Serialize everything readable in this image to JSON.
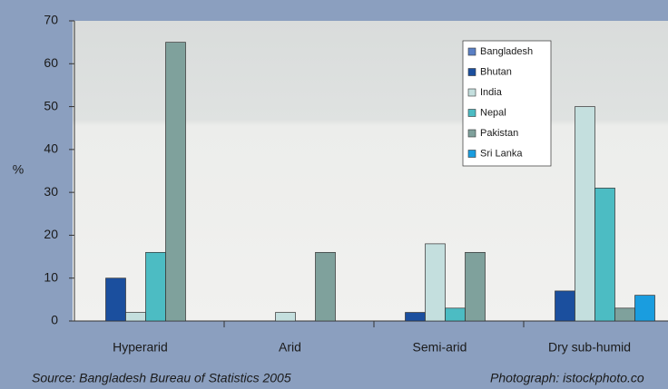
{
  "chart_data": {
    "type": "bar",
    "ylabel": "%",
    "categories": [
      "Hyperarid",
      "Arid",
      "Semi-arid",
      "Dry sub-humid"
    ],
    "series": [
      {
        "name": "Bangladesh",
        "color": "#5a7fc4",
        "values": [
          0,
          0,
          0,
          0
        ]
      },
      {
        "name": "Bhutan",
        "color": "#1b4f9e",
        "values": [
          10,
          0,
          2,
          7
        ]
      },
      {
        "name": "India",
        "color": "#c4dfde",
        "values": [
          2,
          2,
          18,
          50
        ]
      },
      {
        "name": "Nepal",
        "color": "#4cbcc3",
        "values": [
          16,
          0,
          3,
          31
        ]
      },
      {
        "name": "Pakistan",
        "color": "#7fa19c",
        "values": [
          65,
          16,
          16,
          3
        ]
      },
      {
        "name": "Sri Lanka",
        "color": "#1a9ddf",
        "values": [
          0,
          0,
          0,
          6
        ]
      }
    ],
    "ylim": [
      0,
      70
    ],
    "yticks": [
      0,
      10,
      20,
      30,
      40,
      50,
      60,
      70
    ],
    "source": "Source: Bangladesh Bureau of Statistics 2005",
    "credit": "Photograph: istockphoto.co"
  }
}
